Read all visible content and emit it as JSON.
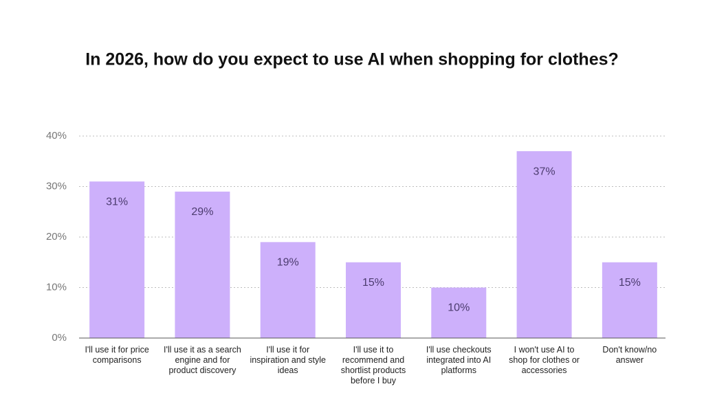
{
  "chart_data": {
    "type": "bar",
    "title": "In 2026, how do you expect to use AI when shopping for clothes?",
    "categories": [
      "I'll use it for price comparisons",
      "I'll use it as a search engine and for product discovery",
      "I'll use it for inspiration and style ideas",
      "I'll use it to recommend and shortlist products before I buy",
      "I'll use checkouts integrated into AI platforms",
      "I won't use AI to shop for clothes or accessories",
      "Don't know/no answer"
    ],
    "values": [
      31,
      29,
      19,
      15,
      10,
      37,
      15
    ],
    "value_labels": [
      "31%",
      "29%",
      "19%",
      "15%",
      "10%",
      "37%",
      "15%"
    ],
    "color": "#cdb0fb",
    "ylim": [
      0,
      40
    ],
    "yticks": [
      {
        "value": 0,
        "label": "0%"
      },
      {
        "value": 10,
        "label": "10%"
      },
      {
        "value": 20,
        "label": "20%"
      },
      {
        "value": 30,
        "label": "30%"
      },
      {
        "value": 40,
        "label": "40%"
      }
    ],
    "grid": true
  }
}
